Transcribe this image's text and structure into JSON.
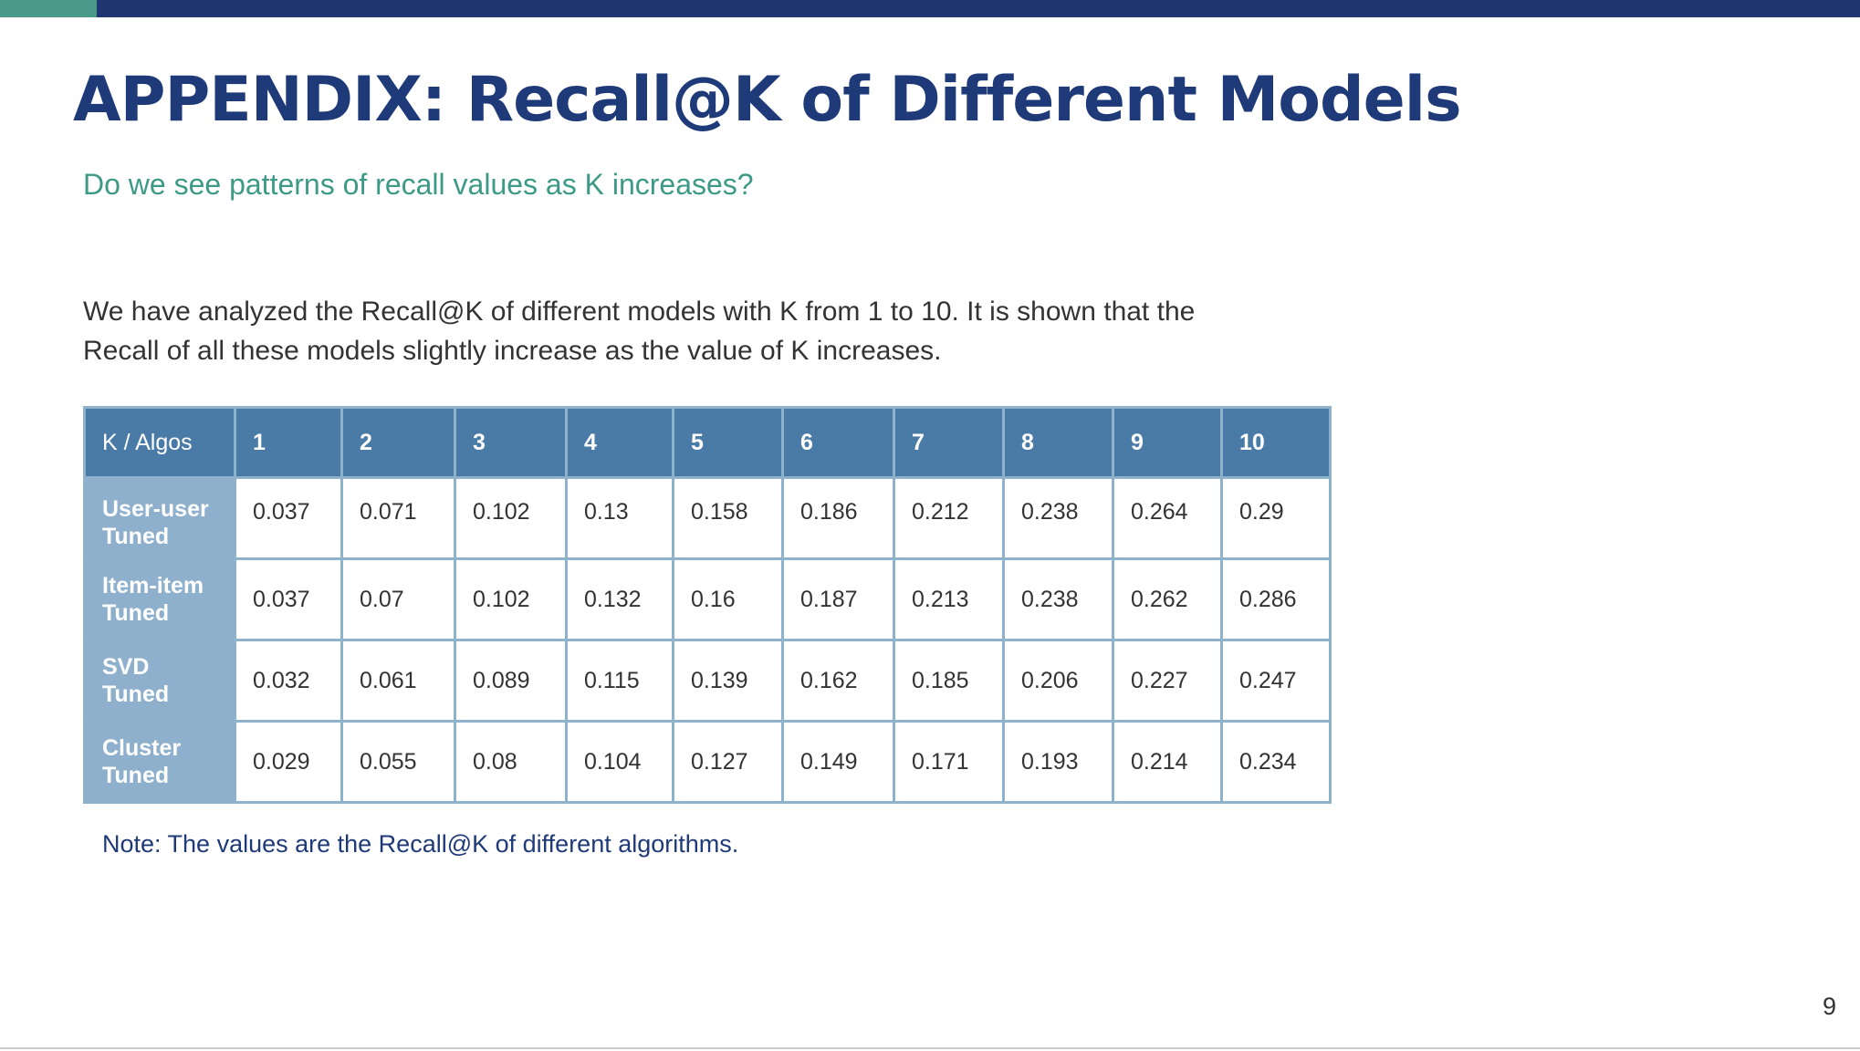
{
  "slide": {
    "title": "APPENDIX: Recall@K of Different Models",
    "subtitle": "Do we see patterns of recall values as K increases?",
    "body_lines": [
      "We have analyzed the Recall@K of different models with K from 1 to 10. It is shown that the",
      "Recall of all these models slightly increase as the value of K increases."
    ],
    "note": "Note: The values are the Recall@K of different algorithms.",
    "page_number": "9"
  },
  "table": {
    "corner_header": "K  / Algos",
    "columns": [
      "1",
      "2",
      "3",
      "4",
      "5",
      "6",
      "7",
      "8",
      "9",
      "10"
    ],
    "rows": [
      {
        "label_1": "User-user",
        "label_2": "Tuned",
        "values": [
          "0.037",
          "0.071",
          "0.102",
          "0.13",
          "0.158",
          "0.186",
          "0.212",
          "0.238",
          "0.264",
          "0.29"
        ]
      },
      {
        "label_1": "Item-item",
        "label_2": "Tuned",
        "values": [
          "0.037",
          "0.07",
          "0.102",
          "0.132",
          "0.16",
          "0.187",
          "0.213",
          "0.238",
          "0.262",
          "0.286"
        ]
      },
      {
        "label_1": "SVD",
        "label_2": "Tuned",
        "values": [
          "0.032",
          "0.061",
          "0.089",
          "0.115",
          "0.139",
          "0.162",
          "0.185",
          "0.206",
          "0.227",
          "0.247"
        ]
      },
      {
        "label_1": "Cluster",
        "label_2": "Tuned",
        "values": [
          "0.029",
          "0.055",
          "0.08",
          "0.104",
          "0.127",
          "0.149",
          "0.171",
          "0.193",
          "0.214",
          "0.234"
        ]
      }
    ]
  },
  "colors": {
    "title": "#1f3a78",
    "subtitle": "#3c9a86",
    "header_bg": "#4a7aa6",
    "row_label_bg": "#8fb0cc",
    "top_bar": "#203672",
    "top_bar_accent": "#4a9a8c"
  }
}
